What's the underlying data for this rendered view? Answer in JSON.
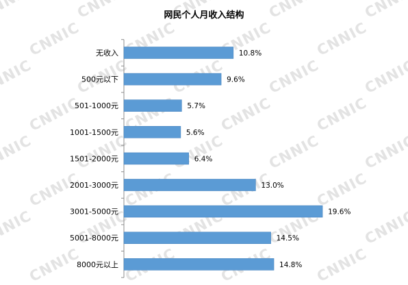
{
  "chart_data": {
    "type": "bar",
    "orientation": "horizontal",
    "title": "网民个人月收入结构",
    "categories": [
      "无收入",
      "500元以下",
      "501-1000元",
      "1001-1500元",
      "1501-2000元",
      "2001-3000元",
      "3001-5000元",
      "5001-8000元",
      "8000元以上"
    ],
    "values": [
      10.8,
      9.6,
      5.7,
      5.6,
      6.4,
      13.0,
      19.6,
      14.5,
      14.8
    ],
    "value_labels": [
      "10.8%",
      "9.6%",
      "5.7%",
      "5.6%",
      "6.4%",
      "13.0%",
      "19.6%",
      "14.5%",
      "14.8%"
    ],
    "unit": "%",
    "bar_color": "#5b9bd5",
    "grid": false,
    "legend": "none"
  },
  "watermark": {
    "text": "CNNIC"
  }
}
